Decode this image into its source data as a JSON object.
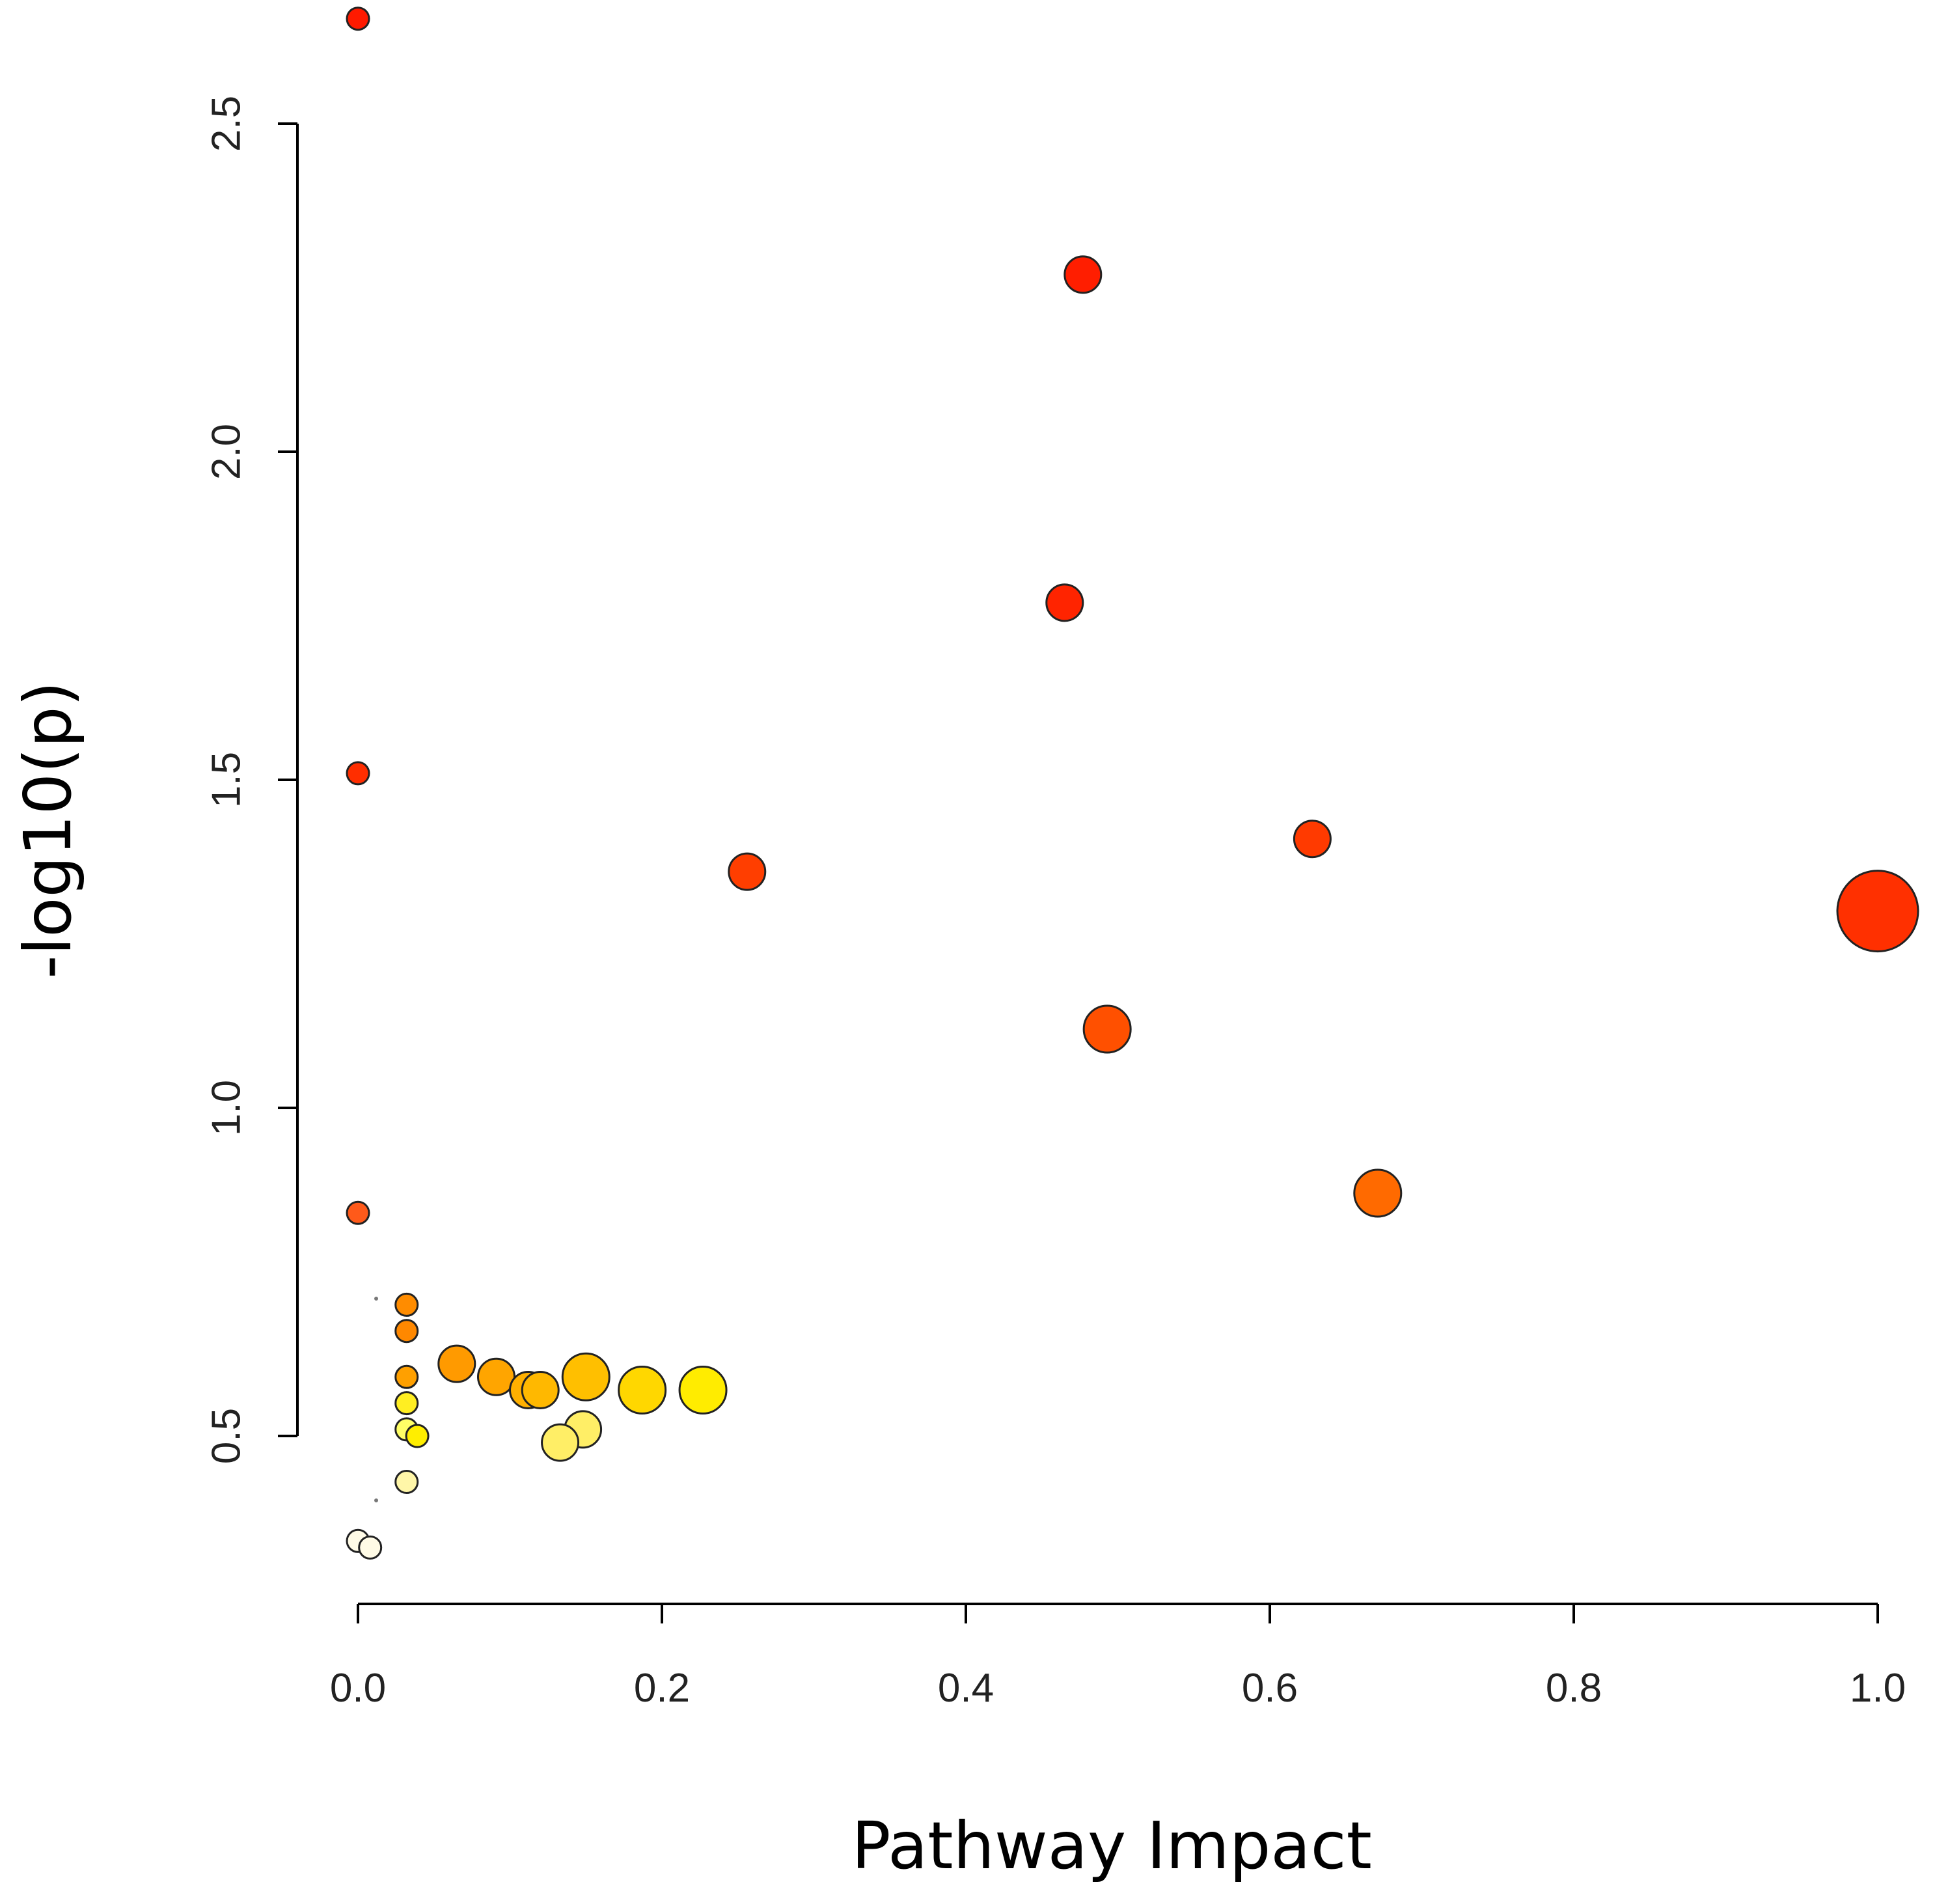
{
  "chart_data": {
    "type": "scatter",
    "title": "",
    "xlabel": "Pathway Impact",
    "ylabel": "-log10(p)",
    "xlim": [
      0.0,
      1.0
    ],
    "ylim": [
      0.5,
      2.5
    ],
    "xticks": [
      "0.0",
      "0.2",
      "0.4",
      "0.6",
      "0.8",
      "1.0"
    ],
    "yticks": [
      "0.5",
      "1.0",
      "1.5",
      "2.0",
      "2.5"
    ],
    "grid": false,
    "legend": "none",
    "encoding": {
      "color": "-log10(p) (yellow = low, red = high)",
      "size": "pathway impact"
    },
    "points": [
      {
        "x": 0.0,
        "y": 2.66,
        "color": "#ff1a00",
        "size": 1
      },
      {
        "x": 0.477,
        "y": 2.27,
        "color": "#ff1e00",
        "size": 2
      },
      {
        "x": 0.465,
        "y": 1.77,
        "color": "#ff2400",
        "size": 2
      },
      {
        "x": 0.0,
        "y": 1.51,
        "color": "#ff2e00",
        "size": 1
      },
      {
        "x": 0.628,
        "y": 1.41,
        "color": "#ff3a00",
        "size": 2
      },
      {
        "x": 0.256,
        "y": 1.36,
        "color": "#ff3e00",
        "size": 2
      },
      {
        "x": 1.0,
        "y": 1.3,
        "color": "#ff3000",
        "size": 5
      },
      {
        "x": 0.493,
        "y": 1.12,
        "color": "#ff5000",
        "size": 3
      },
      {
        "x": 0.0,
        "y": 0.84,
        "color": "#ff5a1a",
        "size": 1
      },
      {
        "x": 0.671,
        "y": 0.87,
        "color": "#ff6a00",
        "size": 3
      },
      {
        "x": 0.032,
        "y": 0.7,
        "color": "#ff8c00",
        "size": 1
      },
      {
        "x": 0.032,
        "y": 0.66,
        "color": "#ff8800",
        "size": 1
      },
      {
        "x": 0.065,
        "y": 0.61,
        "color": "#ff9a00",
        "size": 2
      },
      {
        "x": 0.091,
        "y": 0.59,
        "color": "#ffa500",
        "size": 2
      },
      {
        "x": 0.032,
        "y": 0.59,
        "color": "#ffa000",
        "size": 1
      },
      {
        "x": 0.112,
        "y": 0.57,
        "color": "#ffb000",
        "size": 2
      },
      {
        "x": 0.12,
        "y": 0.57,
        "color": "#ffb800",
        "size": 2
      },
      {
        "x": 0.15,
        "y": 0.59,
        "color": "#ffbf00",
        "size": 3
      },
      {
        "x": 0.187,
        "y": 0.57,
        "color": "#ffd700",
        "size": 3
      },
      {
        "x": 0.227,
        "y": 0.57,
        "color": "#ffec00",
        "size": 3
      },
      {
        "x": 0.032,
        "y": 0.55,
        "color": "#ffee22",
        "size": 1
      },
      {
        "x": 0.032,
        "y": 0.51,
        "color": "#ffff66",
        "size": 1
      },
      {
        "x": 0.039,
        "y": 0.5,
        "color": "#ffee00",
        "size": 1
      },
      {
        "x": 0.148,
        "y": 0.51,
        "color": "#ffee66",
        "size": 2
      },
      {
        "x": 0.133,
        "y": 0.49,
        "color": "#ffee66",
        "size": 2
      },
      {
        "x": 0.032,
        "y": 0.43,
        "color": "#fff6a8",
        "size": 1
      },
      {
        "x": 0.0,
        "y": 0.34,
        "color": "#fffbe6",
        "size": 1
      },
      {
        "x": 0.008,
        "y": 0.33,
        "color": "#fffbe6",
        "size": 1
      }
    ]
  }
}
